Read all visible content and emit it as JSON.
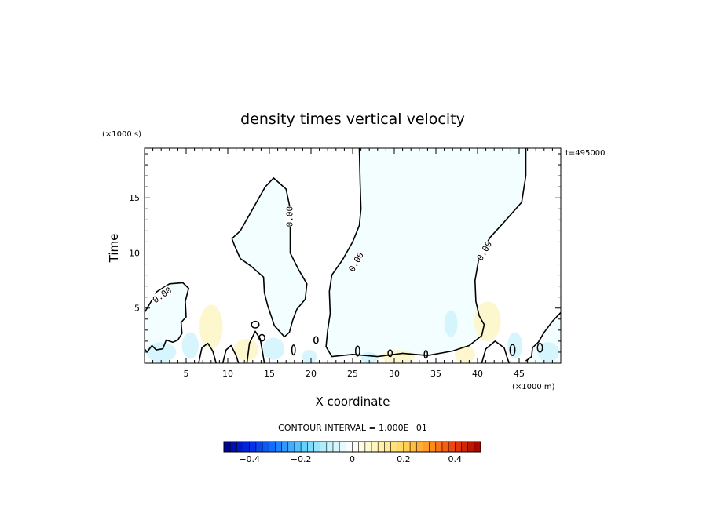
{
  "chart_data": {
    "type": "contour",
    "title": "density times vertical velocity",
    "xlabel": "X coordinate",
    "ylabel": "Time",
    "x_scale_label": "(×1000 m)",
    "y_scale_label": "(×1000 s)",
    "time_stamp": "t=495000",
    "xlim": [
      0,
      50
    ],
    "ylim": [
      0,
      19.5
    ],
    "xticks": [
      5,
      10,
      15,
      20,
      25,
      30,
      35,
      40,
      45
    ],
    "yticks": [
      5,
      10,
      15
    ],
    "contour_level_label": "0.00",
    "contour_interval_text": "CONTOUR INTERVAL = 1.000E−01",
    "colorbar": {
      "min": -0.5,
      "max": 0.5,
      "n_bins": 40,
      "tick_values": [
        -0.4,
        -0.2,
        0,
        0.2,
        0.4
      ],
      "tick_labels": [
        "−0.4",
        "−0.2",
        "0",
        "0.2",
        "0.4"
      ]
    },
    "colors": {
      "negative_fill": "#f2feff",
      "positive_fill": "#ffffff",
      "weak_positive": "#fdf6c8",
      "weak_negative": "#d2f4fc",
      "contour": "#000000"
    },
    "zero_contours": [
      [
        [
          0,
          4.6
        ],
        [
          1.5,
          6.5
        ],
        [
          3,
          7.2
        ],
        [
          4.6,
          7.3
        ],
        [
          5.3,
          6.8
        ],
        [
          4.9,
          5.6
        ],
        [
          5,
          4.2
        ],
        [
          4.4,
          3.7
        ],
        [
          4.5,
          2.7
        ],
        [
          4,
          2.1
        ],
        [
          3.4,
          1.9
        ],
        [
          2.6,
          2.1
        ],
        [
          2.2,
          1.3
        ],
        [
          1.4,
          1.2
        ],
        [
          0.9,
          1.6
        ],
        [
          0.3,
          1
        ],
        [
          0,
          1.3
        ]
      ],
      [
        [
          10.5,
          11.3
        ],
        [
          11.5,
          12
        ],
        [
          13,
          14
        ],
        [
          14.5,
          16
        ],
        [
          15.5,
          16.8
        ],
        [
          17,
          15.8
        ],
        [
          17.5,
          14
        ],
        [
          17.5,
          12.5
        ],
        [
          17.5,
          10
        ],
        [
          18.5,
          8.5
        ],
        [
          19.5,
          7.2
        ],
        [
          19.3,
          5.8
        ],
        [
          18.3,
          4.9
        ],
        [
          17.8,
          3.9
        ],
        [
          17.4,
          2.8
        ],
        [
          16.8,
          2.4
        ],
        [
          15.6,
          3.4
        ],
        [
          14.8,
          5.2
        ],
        [
          14.4,
          6.4
        ],
        [
          14.3,
          7.8
        ],
        [
          12.8,
          8.8
        ],
        [
          11.5,
          9.5
        ],
        [
          10.8,
          10.7
        ],
        [
          10.5,
          11.3
        ]
      ],
      [
        [
          25.8,
          19.5
        ],
        [
          25.9,
          16.5
        ],
        [
          26,
          14
        ],
        [
          25.8,
          12.5
        ],
        [
          25,
          11
        ],
        [
          23.8,
          9.4
        ],
        [
          22.5,
          8
        ],
        [
          22.2,
          6.5
        ],
        [
          22.3,
          4.5
        ],
        [
          22,
          3
        ],
        [
          21.8,
          1.5
        ],
        [
          22.5,
          0.6
        ],
        [
          25,
          0.8
        ],
        [
          28,
          0.6
        ],
        [
          31,
          0.9
        ],
        [
          34,
          0.7
        ],
        [
          37,
          1.1
        ],
        [
          39,
          1.6
        ],
        [
          40.5,
          2.5
        ],
        [
          40.8,
          3.5
        ],
        [
          40.2,
          4.3
        ],
        [
          39.8,
          5.6
        ],
        [
          39.7,
          7.5
        ],
        [
          40.2,
          9.7
        ],
        [
          41.5,
          11.4
        ],
        [
          43.2,
          12.8
        ],
        [
          45.3,
          14.6
        ],
        [
          45.8,
          17
        ],
        [
          45.8,
          19.5
        ]
      ],
      [
        [
          50,
          4.6
        ],
        [
          49,
          3.8
        ],
        [
          48,
          2.8
        ],
        [
          47.3,
          1.9
        ],
        [
          46.6,
          1.4
        ],
        [
          46.5,
          0.6
        ],
        [
          45.8,
          0.2
        ]
      ],
      [
        [
          6.5,
          0
        ],
        [
          6.9,
          1.4
        ],
        [
          7.6,
          1.8
        ],
        [
          8.2,
          1.1
        ],
        [
          8.6,
          0
        ]
      ],
      [
        [
          9.4,
          0
        ],
        [
          9.8,
          1.2
        ],
        [
          10.4,
          1.6
        ],
        [
          11,
          0.7
        ],
        [
          11.3,
          0
        ]
      ],
      [
        [
          12.3,
          0
        ],
        [
          12.6,
          1.8
        ],
        [
          13.3,
          2.9
        ],
        [
          13.9,
          2.2
        ],
        [
          14.2,
          0.9
        ],
        [
          14.4,
          0
        ]
      ],
      [
        [
          40.5,
          0
        ],
        [
          41,
          1.3
        ],
        [
          42.1,
          2
        ],
        [
          43.2,
          1.4
        ],
        [
          43.6,
          0.4
        ],
        [
          43.8,
          0
        ]
      ]
    ],
    "small_zero_loops": [
      {
        "x": 13.3,
        "y": 3.5,
        "rx": 0.45,
        "ry": 0.3
      },
      {
        "x": 14.1,
        "y": 2.3,
        "rx": 0.35,
        "ry": 0.3
      },
      {
        "x": 17.9,
        "y": 1.2,
        "rx": 0.2,
        "ry": 0.45
      },
      {
        "x": 20.6,
        "y": 2.1,
        "rx": 0.25,
        "ry": 0.3
      },
      {
        "x": 25.6,
        "y": 1.1,
        "rx": 0.25,
        "ry": 0.45
      },
      {
        "x": 29.5,
        "y": 0.9,
        "rx": 0.25,
        "ry": 0.3
      },
      {
        "x": 33.8,
        "y": 0.8,
        "rx": 0.2,
        "ry": 0.35
      },
      {
        "x": 44.2,
        "y": 1.2,
        "rx": 0.3,
        "ry": 0.5
      },
      {
        "x": 47.5,
        "y": 1.4,
        "rx": 0.3,
        "ry": 0.4
      }
    ],
    "contour_labels": [
      {
        "x": 2.1,
        "y": 6.2,
        "angle": -35
      },
      {
        "x": 17.4,
        "y": 13.3,
        "angle": -90
      },
      {
        "x": 25.4,
        "y": 9.2,
        "angle": -60
      },
      {
        "x": 40.8,
        "y": 10.2,
        "angle": -60
      }
    ],
    "weak_patches": [
      {
        "x": 8,
        "y": 3.3,
        "rx": 1.4,
        "ry": 2,
        "sign": 1
      },
      {
        "x": 12.2,
        "y": 1.2,
        "rx": 1.5,
        "ry": 1,
        "sign": 1
      },
      {
        "x": 2,
        "y": 1,
        "rx": 1.8,
        "ry": 0.9,
        "sign": -1
      },
      {
        "x": 5.5,
        "y": 1.6,
        "rx": 1,
        "ry": 1.2,
        "sign": -1
      },
      {
        "x": 15.5,
        "y": 1.3,
        "rx": 1.3,
        "ry": 1,
        "sign": -1
      },
      {
        "x": 19.8,
        "y": 0.6,
        "rx": 0.9,
        "ry": 0.6,
        "sign": -1
      },
      {
        "x": 36.8,
        "y": 3.6,
        "rx": 0.8,
        "ry": 1.2,
        "sign": -1
      },
      {
        "x": 41.2,
        "y": 3.8,
        "rx": 1.6,
        "ry": 1.8,
        "sign": 1
      },
      {
        "x": 38.5,
        "y": 0.8,
        "rx": 1.2,
        "ry": 0.8,
        "sign": 1
      },
      {
        "x": 48.5,
        "y": 1,
        "rx": 1.3,
        "ry": 0.9,
        "sign": -1
      },
      {
        "x": 44.5,
        "y": 1.6,
        "rx": 0.9,
        "ry": 1.2,
        "sign": -1
      },
      {
        "x": 30.5,
        "y": 0.6,
        "rx": 2,
        "ry": 0.6,
        "sign": 1
      },
      {
        "x": 27,
        "y": 0.5,
        "rx": 1,
        "ry": 0.5,
        "sign": -1
      }
    ]
  }
}
